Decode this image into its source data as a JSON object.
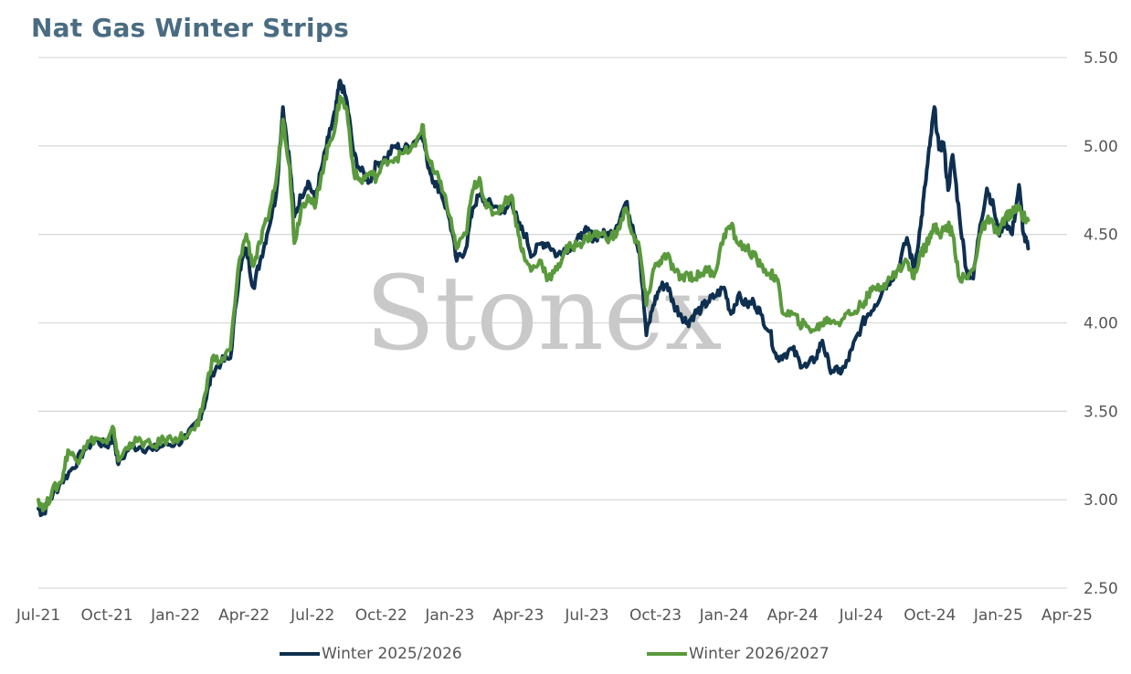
{
  "chart_data": {
    "type": "line",
    "title": "Nat Gas Winter Strips",
    "watermark": "Stonex",
    "ylim": [
      2.5,
      5.5
    ],
    "y_ticks": [
      "5.50",
      "5.00",
      "4.50",
      "4.00",
      "3.50",
      "3.00",
      "2.50"
    ],
    "x_ticks": [
      "Jul-21",
      "Oct-21",
      "Jan-22",
      "Apr-22",
      "Jul-22",
      "Oct-22",
      "Jan-23",
      "Apr-23",
      "Jul-23",
      "Oct-23",
      "Jan-24",
      "Apr-24",
      "Jul-24",
      "Oct-24",
      "Jan-25",
      "Apr-25"
    ],
    "grid": "horizontal",
    "legend_position": "bottom",
    "series": [
      {
        "name": "Winter 2025/2026",
        "color": "#0e2f50",
        "points": [
          [
            0,
            2.95
          ],
          [
            0.2,
            2.92
          ],
          [
            0.5,
            3.0
          ],
          [
            1.0,
            3.1
          ],
          [
            1.5,
            3.18
          ],
          [
            2.0,
            3.28
          ],
          [
            2.5,
            3.34
          ],
          [
            3.0,
            3.3
          ],
          [
            3.3,
            3.36
          ],
          [
            3.5,
            3.2
          ],
          [
            4.0,
            3.3
          ],
          [
            4.5,
            3.3
          ],
          [
            5.0,
            3.28
          ],
          [
            5.5,
            3.31
          ],
          [
            6.0,
            3.32
          ],
          [
            6.5,
            3.35
          ],
          [
            7.0,
            3.45
          ],
          [
            7.3,
            3.55
          ],
          [
            7.6,
            3.72
          ],
          [
            8.0,
            3.78
          ],
          [
            8.4,
            3.8
          ],
          [
            8.8,
            4.3
          ],
          [
            9.1,
            4.42
          ],
          [
            9.4,
            4.2
          ],
          [
            9.7,
            4.35
          ],
          [
            10.0,
            4.5
          ],
          [
            10.4,
            4.72
          ],
          [
            10.7,
            5.22
          ],
          [
            11.0,
            4.9
          ],
          [
            11.2,
            4.6
          ],
          [
            11.5,
            4.72
          ],
          [
            11.8,
            4.8
          ],
          [
            12.1,
            4.7
          ],
          [
            12.4,
            4.88
          ],
          [
            12.7,
            5.05
          ],
          [
            13.0,
            5.2
          ],
          [
            13.2,
            5.37
          ],
          [
            13.5,
            5.25
          ],
          [
            13.8,
            4.95
          ],
          [
            14.1,
            4.86
          ],
          [
            14.5,
            4.8
          ],
          [
            14.8,
            4.9
          ],
          [
            15.2,
            4.93
          ],
          [
            15.6,
            5.0
          ],
          [
            16.0,
            4.98
          ],
          [
            16.5,
            5.03
          ],
          [
            16.8,
            5.08
          ],
          [
            17.0,
            4.92
          ],
          [
            17.3,
            4.8
          ],
          [
            17.6,
            4.75
          ],
          [
            18.0,
            4.58
          ],
          [
            18.3,
            4.35
          ],
          [
            18.7,
            4.42
          ],
          [
            19.0,
            4.65
          ],
          [
            19.3,
            4.72
          ],
          [
            19.6,
            4.68
          ],
          [
            20.0,
            4.66
          ],
          [
            20.4,
            4.62
          ],
          [
            20.7,
            4.7
          ],
          [
            21.0,
            4.55
          ],
          [
            21.3,
            4.5
          ],
          [
            21.6,
            4.38
          ],
          [
            22.0,
            4.45
          ],
          [
            22.3,
            4.45
          ],
          [
            22.7,
            4.38
          ],
          [
            23.0,
            4.42
          ],
          [
            23.3,
            4.43
          ],
          [
            23.7,
            4.48
          ],
          [
            24.0,
            4.52
          ],
          [
            24.3,
            4.48
          ],
          [
            24.6,
            4.5
          ],
          [
            25.0,
            4.5
          ],
          [
            25.3,
            4.55
          ],
          [
            25.7,
            4.68
          ],
          [
            26.0,
            4.55
          ],
          [
            26.3,
            4.4
          ],
          [
            26.6,
            3.93
          ],
          [
            26.9,
            4.1
          ],
          [
            27.2,
            4.2
          ],
          [
            27.5,
            4.22
          ],
          [
            27.8,
            4.1
          ],
          [
            28.1,
            4.05
          ],
          [
            28.4,
            4.0
          ],
          [
            28.7,
            4.05
          ],
          [
            29.0,
            4.08
          ],
          [
            29.3,
            4.12
          ],
          [
            29.6,
            4.15
          ],
          [
            30.0,
            4.2
          ],
          [
            30.3,
            4.05
          ],
          [
            30.6,
            4.15
          ],
          [
            31.0,
            4.1
          ],
          [
            31.3,
            4.12
          ],
          [
            31.6,
            4.05
          ],
          [
            32.0,
            3.95
          ],
          [
            32.3,
            3.8
          ],
          [
            32.6,
            3.82
          ],
          [
            33.0,
            3.85
          ],
          [
            33.3,
            3.78
          ],
          [
            33.6,
            3.75
          ],
          [
            34.0,
            3.8
          ],
          [
            34.3,
            3.9
          ],
          [
            34.6,
            3.75
          ],
          [
            35.0,
            3.72
          ],
          [
            35.3,
            3.75
          ],
          [
            35.6,
            3.85
          ],
          [
            36.0,
            3.98
          ],
          [
            36.3,
            4.05
          ],
          [
            36.6,
            4.1
          ],
          [
            37.0,
            4.2
          ],
          [
            37.3,
            4.25
          ],
          [
            37.6,
            4.3
          ],
          [
            38.0,
            4.48
          ],
          [
            38.3,
            4.3
          ],
          [
            38.6,
            4.55
          ],
          [
            38.8,
            4.78
          ],
          [
            39.0,
            5.0
          ],
          [
            39.2,
            5.22
          ],
          [
            39.4,
            4.98
          ],
          [
            39.6,
            5.02
          ],
          [
            39.8,
            4.75
          ],
          [
            40.0,
            4.95
          ],
          [
            40.3,
            4.6
          ],
          [
            40.6,
            4.3
          ],
          [
            40.9,
            4.25
          ],
          [
            41.2,
            4.55
          ],
          [
            41.5,
            4.76
          ],
          [
            41.8,
            4.65
          ],
          [
            42.0,
            4.5
          ],
          [
            42.3,
            4.58
          ],
          [
            42.6,
            4.5
          ],
          [
            42.9,
            4.78
          ],
          [
            43.1,
            4.5
          ],
          [
            43.3,
            4.42
          ]
        ]
      },
      {
        "name": "Winter 2026/2027",
        "color": "#5a9a3c",
        "points": [
          [
            0,
            3.0
          ],
          [
            0.3,
            2.95
          ],
          [
            0.6,
            3.05
          ],
          [
            1.0,
            3.1
          ],
          [
            1.3,
            3.28
          ],
          [
            1.7,
            3.22
          ],
          [
            2.0,
            3.3
          ],
          [
            2.5,
            3.35
          ],
          [
            3.0,
            3.32
          ],
          [
            3.3,
            3.4
          ],
          [
            3.5,
            3.22
          ],
          [
            4.0,
            3.32
          ],
          [
            4.5,
            3.33
          ],
          [
            5.0,
            3.3
          ],
          [
            5.5,
            3.34
          ],
          [
            6.0,
            3.35
          ],
          [
            6.5,
            3.36
          ],
          [
            7.0,
            3.42
          ],
          [
            7.3,
            3.6
          ],
          [
            7.6,
            3.8
          ],
          [
            8.0,
            3.78
          ],
          [
            8.4,
            3.85
          ],
          [
            8.8,
            4.36
          ],
          [
            9.1,
            4.5
          ],
          [
            9.4,
            4.32
          ],
          [
            9.7,
            4.45
          ],
          [
            10.0,
            4.58
          ],
          [
            10.4,
            4.8
          ],
          [
            10.7,
            5.15
          ],
          [
            11.0,
            4.88
          ],
          [
            11.2,
            4.45
          ],
          [
            11.5,
            4.65
          ],
          [
            11.8,
            4.72
          ],
          [
            12.1,
            4.65
          ],
          [
            12.4,
            4.85
          ],
          [
            12.7,
            5.0
          ],
          [
            13.0,
            5.12
          ],
          [
            13.2,
            5.28
          ],
          [
            13.5,
            5.2
          ],
          [
            13.8,
            4.85
          ],
          [
            14.1,
            4.8
          ],
          [
            14.5,
            4.85
          ],
          [
            14.8,
            4.82
          ],
          [
            15.2,
            4.92
          ],
          [
            15.6,
            4.93
          ],
          [
            16.0,
            4.96
          ],
          [
            16.5,
            5.0
          ],
          [
            16.8,
            5.12
          ],
          [
            17.0,
            4.95
          ],
          [
            17.3,
            4.85
          ],
          [
            17.6,
            4.8
          ],
          [
            18.0,
            4.6
          ],
          [
            18.3,
            4.42
          ],
          [
            18.7,
            4.5
          ],
          [
            19.0,
            4.75
          ],
          [
            19.3,
            4.82
          ],
          [
            19.6,
            4.65
          ],
          [
            20.0,
            4.62
          ],
          [
            20.4,
            4.68
          ],
          [
            20.7,
            4.72
          ],
          [
            21.0,
            4.5
          ],
          [
            21.3,
            4.35
          ],
          [
            21.6,
            4.3
          ],
          [
            22.0,
            4.35
          ],
          [
            22.3,
            4.25
          ],
          [
            22.7,
            4.3
          ],
          [
            23.0,
            4.4
          ],
          [
            23.3,
            4.43
          ],
          [
            23.7,
            4.45
          ],
          [
            24.0,
            4.48
          ],
          [
            24.3,
            4.5
          ],
          [
            24.6,
            4.5
          ],
          [
            25.0,
            4.48
          ],
          [
            25.3,
            4.5
          ],
          [
            25.7,
            4.65
          ],
          [
            26.0,
            4.5
          ],
          [
            26.3,
            4.42
          ],
          [
            26.6,
            4.1
          ],
          [
            26.9,
            4.3
          ],
          [
            27.2,
            4.35
          ],
          [
            27.5,
            4.38
          ],
          [
            27.8,
            4.3
          ],
          [
            28.1,
            4.25
          ],
          [
            28.4,
            4.28
          ],
          [
            28.7,
            4.25
          ],
          [
            29.0,
            4.28
          ],
          [
            29.3,
            4.3
          ],
          [
            29.6,
            4.28
          ],
          [
            30.0,
            4.5
          ],
          [
            30.3,
            4.55
          ],
          [
            30.6,
            4.45
          ],
          [
            31.0,
            4.42
          ],
          [
            31.3,
            4.38
          ],
          [
            31.6,
            4.32
          ],
          [
            32.0,
            4.28
          ],
          [
            32.3,
            4.25
          ],
          [
            32.6,
            4.05
          ],
          [
            33.0,
            4.05
          ],
          [
            33.3,
            4.0
          ],
          [
            33.6,
            3.98
          ],
          [
            34.0,
            3.96
          ],
          [
            34.3,
            4.0
          ],
          [
            34.6,
            4.02
          ],
          [
            35.0,
            4.0
          ],
          [
            35.3,
            4.05
          ],
          [
            35.6,
            4.05
          ],
          [
            36.0,
            4.1
          ],
          [
            36.3,
            4.15
          ],
          [
            36.6,
            4.2
          ],
          [
            37.0,
            4.22
          ],
          [
            37.3,
            4.25
          ],
          [
            37.6,
            4.3
          ],
          [
            38.0,
            4.35
          ],
          [
            38.3,
            4.25
          ],
          [
            38.6,
            4.4
          ],
          [
            38.8,
            4.42
          ],
          [
            39.0,
            4.5
          ],
          [
            39.2,
            4.55
          ],
          [
            39.4,
            4.5
          ],
          [
            39.6,
            4.52
          ],
          [
            39.8,
            4.55
          ],
          [
            40.0,
            4.5
          ],
          [
            40.3,
            4.25
          ],
          [
            40.6,
            4.25
          ],
          [
            40.9,
            4.3
          ],
          [
            41.2,
            4.5
          ],
          [
            41.5,
            4.58
          ],
          [
            41.8,
            4.55
          ],
          [
            42.0,
            4.5
          ],
          [
            42.3,
            4.6
          ],
          [
            42.6,
            4.62
          ],
          [
            42.9,
            4.65
          ],
          [
            43.1,
            4.6
          ],
          [
            43.3,
            4.58
          ]
        ]
      }
    ]
  }
}
